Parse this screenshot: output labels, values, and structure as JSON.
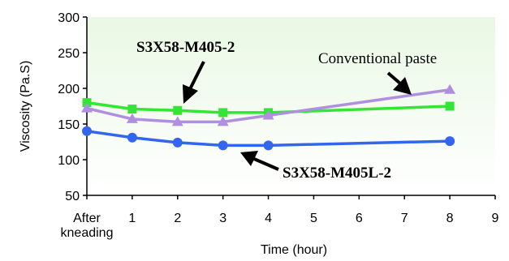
{
  "chart_data": {
    "type": "line",
    "title": "",
    "xlabel": "Time (hour)",
    "ylabel": "Viscosity (Pa.S)",
    "ylim": [
      50,
      300
    ],
    "xlim": [
      0,
      9
    ],
    "yticks": [
      50,
      100,
      150,
      200,
      250,
      300
    ],
    "xticks": [
      {
        "x": 0,
        "label": [
          "After",
          "kneading"
        ]
      },
      {
        "x": 1,
        "label": [
          "1"
        ]
      },
      {
        "x": 2,
        "label": [
          "2"
        ]
      },
      {
        "x": 3,
        "label": [
          "3"
        ]
      },
      {
        "x": 4,
        "label": [
          "4"
        ]
      },
      {
        "x": 5,
        "label": [
          "5"
        ]
      },
      {
        "x": 6,
        "label": [
          "6"
        ]
      },
      {
        "x": 7,
        "label": [
          "7"
        ]
      },
      {
        "x": 8,
        "label": [
          "8"
        ]
      },
      {
        "x": 9,
        "label": [
          "9"
        ]
      }
    ],
    "grid": false,
    "series": [
      {
        "name": "S3X58-M405-2",
        "color": "#33e633",
        "marker": "square",
        "x": [
          0,
          1,
          2,
          3,
          4,
          8
        ],
        "y": [
          180,
          171,
          169,
          166,
          166,
          175
        ]
      },
      {
        "name": "Conventional paste",
        "color": "#b08ee0",
        "marker": "triangle",
        "x": [
          0,
          1,
          2,
          3,
          4,
          8
        ],
        "y": [
          172,
          157,
          153,
          153,
          162,
          198
        ]
      },
      {
        "name": "S3X58-M405L-2",
        "color": "#3366ee",
        "marker": "circle",
        "x": [
          0,
          1,
          2,
          3,
          4,
          8
        ],
        "y": [
          140,
          131,
          124,
          120,
          120,
          126
        ]
      }
    ],
    "annotations": [
      {
        "text": "S3X58-M405-2",
        "series": 0
      },
      {
        "text": "Conventional paste",
        "series": 1
      },
      {
        "text": "S3X58-M405L-2",
        "series": 2
      }
    ]
  }
}
